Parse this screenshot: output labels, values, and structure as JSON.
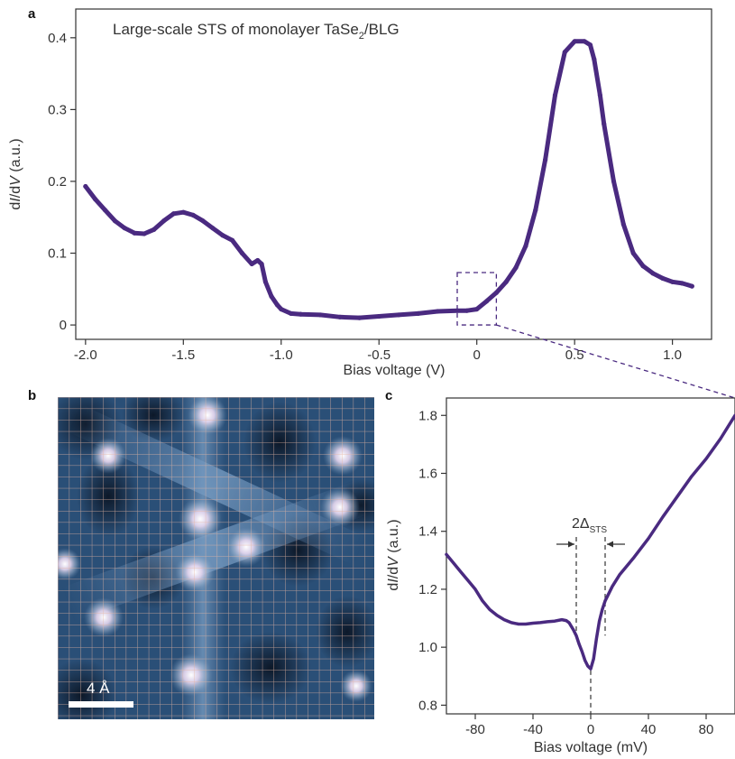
{
  "panels": {
    "a": "a",
    "b": "b",
    "c": "c"
  },
  "scale_bar_label": "4 Å",
  "delta_label": {
    "main": "2Δ",
    "sub": "STS"
  },
  "colors": {
    "curve": "#4a2a80",
    "axis": "#333333"
  },
  "chart_data": [
    {
      "type": "line",
      "title_main": "Large-scale STS of monolayer TaSe",
      "title_sub": "2",
      "title_tail": "/BLG",
      "ylabel_main": "d",
      "ylabel_i": "I",
      "ylabel_mid": "/d",
      "ylabel_v": "V",
      "ylabel_tail": " (a.u.)",
      "xlabel": "Bias voltage (V)",
      "xlim": [
        -2.05,
        1.2
      ],
      "ylim": [
        -0.02,
        0.44
      ],
      "xticks": [
        -2.0,
        -1.5,
        -1.0,
        -0.5,
        0,
        0.5,
        1.0
      ],
      "xtick_labels": [
        "-2.0",
        "-1.5",
        "-1.0",
        "-0.5",
        "0",
        "0.5",
        "1.0"
      ],
      "yticks": [
        0,
        0.1,
        0.2,
        0.3,
        0.4
      ],
      "ytick_labels": [
        "0",
        "0.1",
        "0.2",
        "0.3",
        "0.4"
      ],
      "zoom_box": {
        "x": [
          -0.1,
          0.1
        ],
        "y": [
          0.0,
          0.073
        ]
      },
      "series": [
        {
          "x": [
            -2.0,
            -1.95,
            -1.9,
            -1.85,
            -1.8,
            -1.75,
            -1.7,
            -1.65,
            -1.6,
            -1.55,
            -1.5,
            -1.45,
            -1.4,
            -1.35,
            -1.3,
            -1.25,
            -1.2,
            -1.15,
            -1.12,
            -1.1,
            -1.08,
            -1.05,
            -1.02,
            -1.0,
            -0.95,
            -0.9,
            -0.8,
            -0.7,
            -0.6,
            -0.5,
            -0.4,
            -0.3,
            -0.2,
            -0.1,
            -0.05,
            0.0,
            0.05,
            0.1,
            0.15,
            0.2,
            0.25,
            0.3,
            0.35,
            0.4,
            0.45,
            0.5,
            0.55,
            0.58,
            0.6,
            0.63,
            0.65,
            0.7,
            0.75,
            0.8,
            0.85,
            0.9,
            0.95,
            1.0,
            1.05,
            1.1
          ],
          "y": [
            0.193,
            0.175,
            0.16,
            0.145,
            0.135,
            0.128,
            0.127,
            0.133,
            0.145,
            0.155,
            0.157,
            0.153,
            0.145,
            0.135,
            0.125,
            0.118,
            0.1,
            0.085,
            0.09,
            0.085,
            0.06,
            0.04,
            0.028,
            0.022,
            0.016,
            0.015,
            0.014,
            0.011,
            0.01,
            0.012,
            0.014,
            0.016,
            0.019,
            0.02,
            0.02,
            0.022,
            0.033,
            0.045,
            0.06,
            0.08,
            0.11,
            0.16,
            0.23,
            0.32,
            0.38,
            0.395,
            0.395,
            0.39,
            0.37,
            0.32,
            0.28,
            0.2,
            0.14,
            0.1,
            0.082,
            0.072,
            0.065,
            0.06,
            0.058,
            0.054
          ]
        }
      ]
    },
    {
      "type": "line",
      "ylabel_main": "d",
      "ylabel_i": "I",
      "ylabel_mid": "/d",
      "ylabel_v": "V",
      "ylabel_tail": " (a.u.)",
      "xlabel": "Bias voltage (mV)",
      "xlim": [
        -100,
        100
      ],
      "ylim": [
        0.77,
        1.86
      ],
      "xticks": [
        -80,
        -40,
        0,
        40,
        80
      ],
      "xtick_labels": [
        "-80",
        "-40",
        "0",
        "40",
        "80"
      ],
      "yticks": [
        0.8,
        1.0,
        1.2,
        1.4,
        1.6,
        1.8
      ],
      "ytick_labels": [
        "0.8",
        "1.0",
        "1.2",
        "1.4",
        "1.6",
        "1.8"
      ],
      "gap_markers_mV": [
        -10,
        10
      ],
      "series": [
        {
          "x": [
            -100,
            -95,
            -90,
            -85,
            -80,
            -75,
            -70,
            -65,
            -60,
            -55,
            -50,
            -45,
            -40,
            -35,
            -30,
            -25,
            -20,
            -17,
            -15,
            -12,
            -10,
            -8,
            -6,
            -4,
            -2,
            0,
            2,
            4,
            6,
            8,
            10,
            15,
            20,
            30,
            40,
            50,
            60,
            70,
            80,
            90,
            100
          ],
          "y": [
            1.32,
            1.29,
            1.26,
            1.23,
            1.2,
            1.16,
            1.13,
            1.11,
            1.095,
            1.085,
            1.08,
            1.08,
            1.083,
            1.085,
            1.088,
            1.09,
            1.095,
            1.092,
            1.085,
            1.06,
            1.04,
            1.01,
            0.985,
            0.955,
            0.935,
            0.925,
            0.96,
            1.03,
            1.09,
            1.13,
            1.16,
            1.21,
            1.25,
            1.31,
            1.375,
            1.45,
            1.52,
            1.59,
            1.65,
            1.72,
            1.8
          ]
        }
      ]
    }
  ]
}
